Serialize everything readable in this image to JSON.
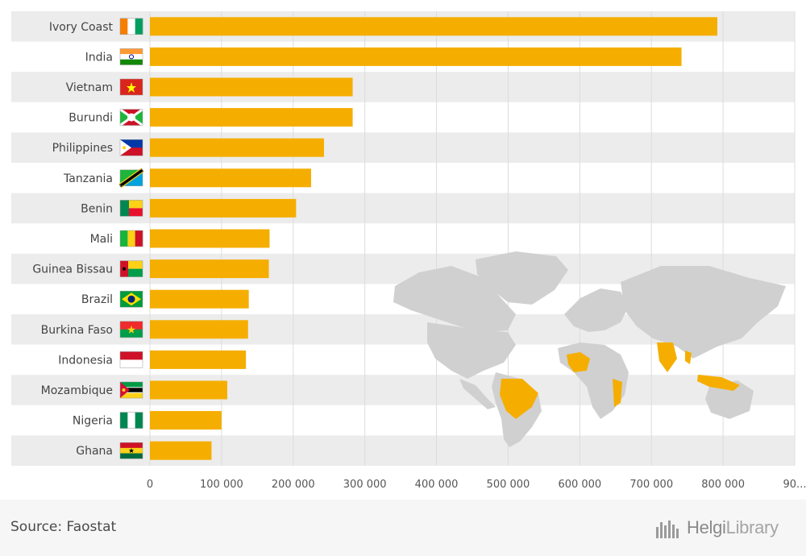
{
  "chart_data": {
    "type": "bar",
    "orientation": "horizontal",
    "categories": [
      "Ivory Coast",
      "India",
      "Vietnam",
      "Burundi",
      "Philippines",
      "Tanzania",
      "Benin",
      "Mali",
      "Guinea Bissau",
      "Brazil",
      "Burkina Faso",
      "Indonesia",
      "Mozambique",
      "Nigeria",
      "Ghana"
    ],
    "values": [
      792000,
      742000,
      283000,
      283000,
      243000,
      225000,
      204000,
      167000,
      166000,
      138000,
      137000,
      134000,
      108000,
      100000,
      86000
    ],
    "xlim": [
      0,
      900000
    ],
    "x_ticks": [
      "0",
      "100 000",
      "200 000",
      "300 000",
      "400 000",
      "500 000",
      "600 000",
      "700 000",
      "800 000",
      "90..."
    ],
    "grid": true,
    "bar_color": "#f5ae00",
    "flags": [
      "ivory-coast-flag",
      "india-flag",
      "vietnam-flag",
      "burundi-flag",
      "philippines-flag",
      "tanzania-flag",
      "benin-flag",
      "mali-flag",
      "guinea-bissau-flag",
      "brazil-flag",
      "burkina-faso-flag",
      "indonesia-flag",
      "mozambique-flag",
      "nigeria-flag",
      "ghana-flag"
    ]
  },
  "footer": {
    "source": "Source: Faostat",
    "logo_bold": "Helgi",
    "logo_light": "Library"
  },
  "colors": {
    "bar": "#f5ae00",
    "map_land": "#d0d0d0",
    "map_highlight": "#f5ae00",
    "stripe": "#ececec"
  }
}
